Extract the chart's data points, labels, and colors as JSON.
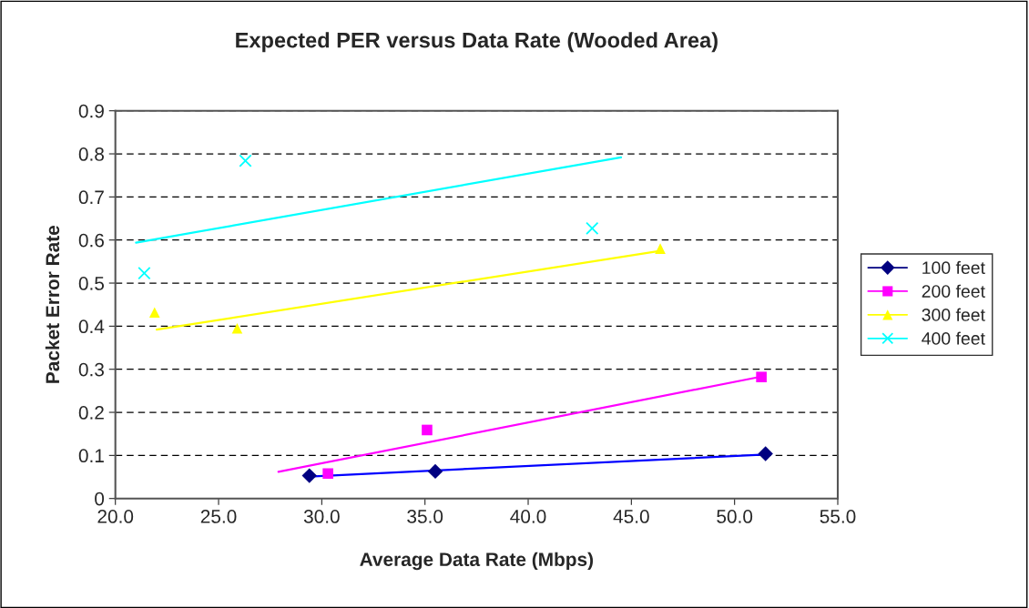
{
  "chart_data": {
    "type": "scatter",
    "title": "Expected PER versus Data Rate (Wooded Area)",
    "xlabel": "Average Data Rate (Mbps)",
    "ylabel": "Packet Error Rate",
    "xlim": [
      20,
      55
    ],
    "xticks": [
      {
        "value": 20,
        "label": "20.0"
      },
      {
        "value": 25,
        "label": "25.0"
      },
      {
        "value": 30,
        "label": "30.0"
      },
      {
        "value": 35,
        "label": "35.0"
      },
      {
        "value": 40,
        "label": "40.0"
      },
      {
        "value": 45,
        "label": "45.0"
      },
      {
        "value": 50,
        "label": "50.0"
      },
      {
        "value": 55,
        "label": "55.0"
      }
    ],
    "ylim": [
      0,
      0.9
    ],
    "yticks": [
      0,
      0.1,
      0.2,
      0.3,
      0.4,
      0.5,
      0.6,
      0.7,
      0.8,
      0.9
    ],
    "grid": "y",
    "legend": "right",
    "series": [
      {
        "name": "100 feet",
        "color": "#000080",
        "marker": "diamond",
        "x": [
          29.4,
          35.5,
          51.5
        ],
        "values": [
          0.053,
          0.063,
          0.104
        ]
      },
      {
        "name": "200 feet",
        "color": "#ff00ff",
        "marker": "square",
        "x": [
          30.3,
          35.1,
          51.3
        ],
        "values": [
          0.058,
          0.159,
          0.282
        ]
      },
      {
        "name": "300 feet",
        "color": "#ffff00",
        "marker": "triangle",
        "x": [
          21.9,
          25.9,
          46.4
        ],
        "values": [
          0.432,
          0.395,
          0.58
        ]
      },
      {
        "name": "400 feet",
        "color": "#00ffff",
        "marker": "cross",
        "x": [
          21.4,
          26.3,
          43.1
        ],
        "values": [
          0.523,
          0.784,
          0.627
        ]
      },
      {
        "type": "line",
        "color": "#0000ff",
        "x": [
          29.4,
          51.5
        ],
        "values": [
          0.051,
          0.102
        ]
      },
      {
        "type": "line",
        "color": "#ff00ff",
        "x": [
          27.9,
          51.3
        ],
        "values": [
          0.062,
          0.283
        ]
      },
      {
        "type": "line",
        "color": "#ffff00",
        "x": [
          22.0,
          46.4
        ],
        "values": [
          0.392,
          0.575
        ]
      },
      {
        "type": "line",
        "color": "#00ffff",
        "x": [
          21.0,
          44.5
        ],
        "values": [
          0.594,
          0.792
        ]
      }
    ]
  }
}
